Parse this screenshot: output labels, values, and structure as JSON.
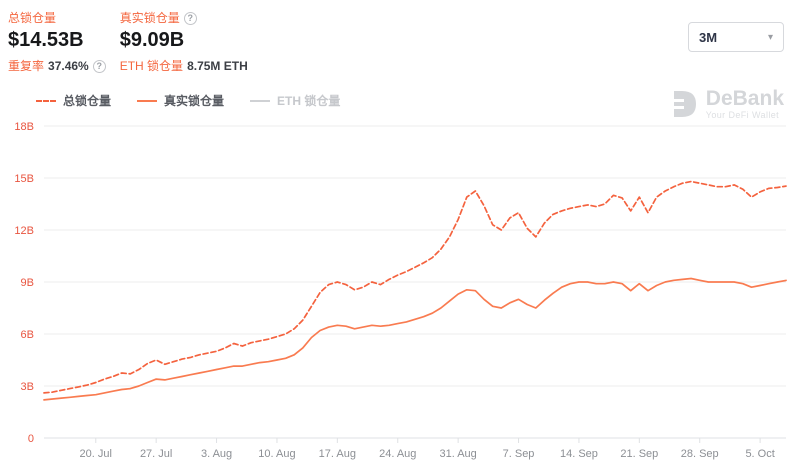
{
  "header": {
    "stats": [
      {
        "label": "总锁仓量",
        "value": "$14.53B",
        "has_help": false
      },
      {
        "label": "真实锁仓量",
        "value": "$9.09B",
        "has_help": true
      }
    ],
    "substats": [
      {
        "label": "重复率",
        "value": "37.46%",
        "has_help": true
      },
      {
        "label": "ETH 锁仓量",
        "value": "8.75M ETH",
        "has_help": false
      }
    ],
    "range_selector": {
      "value": "3M"
    }
  },
  "icons": {
    "help": "?",
    "chevron_down": "▾"
  },
  "legend": [
    {
      "label": "总锁仓量",
      "style": "dashed",
      "color": "#f4623e",
      "enabled": true
    },
    {
      "label": "真实锁仓量",
      "style": "solid",
      "color": "#f97b50",
      "enabled": true
    },
    {
      "label": "ETH 锁仓量",
      "style": "solid",
      "color": "#cfd1d4",
      "enabled": false
    }
  ],
  "watermark": {
    "name": "DeBank",
    "tagline": "Your DeFi Wallet"
  },
  "colors": {
    "y_label": "#e85540",
    "x_label": "#8c8f94",
    "grid": "#ededed",
    "axis": "#dfe1e4",
    "watermark": "#d4d6d9"
  },
  "chart_data": {
    "type": "line",
    "title": "",
    "xlabel": "",
    "ylabel": "",
    "ylim": [
      0,
      18
    ],
    "grid": true,
    "legend_position": "top-left",
    "y_ticks": [
      {
        "v": 18,
        "label": "18B"
      },
      {
        "v": 15,
        "label": "15B"
      },
      {
        "v": 12,
        "label": "12B"
      },
      {
        "v": 9,
        "label": "9B"
      },
      {
        "v": 6,
        "label": "6B"
      },
      {
        "v": 3,
        "label": "3B"
      },
      {
        "v": 0,
        "label": "0"
      }
    ],
    "x_ticks": [
      {
        "i": 6,
        "label": "20. Jul"
      },
      {
        "i": 13,
        "label": "27. Jul"
      },
      {
        "i": 20,
        "label": "3. Aug"
      },
      {
        "i": 27,
        "label": "10. Aug"
      },
      {
        "i": 34,
        "label": "17. Aug"
      },
      {
        "i": 41,
        "label": "24. Aug"
      },
      {
        "i": 48,
        "label": "31. Aug"
      },
      {
        "i": 55,
        "label": "7. Sep"
      },
      {
        "i": 62,
        "label": "14. Sep"
      },
      {
        "i": 69,
        "label": "21. Sep"
      },
      {
        "i": 76,
        "label": "28. Sep"
      },
      {
        "i": 83,
        "label": "5. Oct"
      }
    ],
    "x_unit": "days from 14 Jul to 8 Oct",
    "series": [
      {
        "name": "总锁仓量",
        "dash": true,
        "color": "#f4623e",
        "values": [
          2.6,
          2.65,
          2.75,
          2.85,
          2.95,
          3.05,
          3.2,
          3.4,
          3.55,
          3.75,
          3.7,
          3.95,
          4.3,
          4.5,
          4.25,
          4.4,
          4.55,
          4.65,
          4.8,
          4.9,
          5.0,
          5.2,
          5.45,
          5.3,
          5.5,
          5.6,
          5.7,
          5.85,
          6.0,
          6.3,
          6.8,
          7.6,
          8.4,
          8.85,
          9.0,
          8.85,
          8.55,
          8.7,
          9.0,
          8.85,
          9.15,
          9.4,
          9.6,
          9.85,
          10.1,
          10.4,
          10.9,
          11.6,
          12.6,
          13.9,
          14.25,
          13.4,
          12.3,
          12.0,
          12.7,
          13.0,
          12.1,
          11.6,
          12.4,
          12.9,
          13.1,
          13.25,
          13.35,
          13.45,
          13.35,
          13.5,
          14.0,
          13.85,
          13.1,
          13.9,
          13.0,
          13.9,
          14.25,
          14.5,
          14.7,
          14.8,
          14.7,
          14.6,
          14.5,
          14.5,
          14.6,
          14.35,
          13.9,
          14.2,
          14.4,
          14.45,
          14.53
        ]
      },
      {
        "name": "真实锁仓量",
        "dash": false,
        "color": "#f97b50",
        "values": [
          2.2,
          2.25,
          2.3,
          2.35,
          2.4,
          2.45,
          2.5,
          2.6,
          2.7,
          2.8,
          2.85,
          3.0,
          3.2,
          3.4,
          3.35,
          3.45,
          3.55,
          3.65,
          3.75,
          3.85,
          3.95,
          4.05,
          4.15,
          4.15,
          4.25,
          4.35,
          4.4,
          4.5,
          4.6,
          4.8,
          5.2,
          5.8,
          6.2,
          6.4,
          6.5,
          6.45,
          6.3,
          6.4,
          6.5,
          6.45,
          6.5,
          6.6,
          6.7,
          6.85,
          7.0,
          7.2,
          7.5,
          7.9,
          8.3,
          8.55,
          8.5,
          8.0,
          7.6,
          7.5,
          7.8,
          8.0,
          7.7,
          7.5,
          7.95,
          8.35,
          8.7,
          8.9,
          9.0,
          9.0,
          8.9,
          8.9,
          9.0,
          8.9,
          8.5,
          8.9,
          8.5,
          8.8,
          9.0,
          9.1,
          9.15,
          9.2,
          9.1,
          9.0,
          9.0,
          9.0,
          9.0,
          8.9,
          8.7,
          8.8,
          8.9,
          9.0,
          9.09
        ]
      }
    ]
  }
}
